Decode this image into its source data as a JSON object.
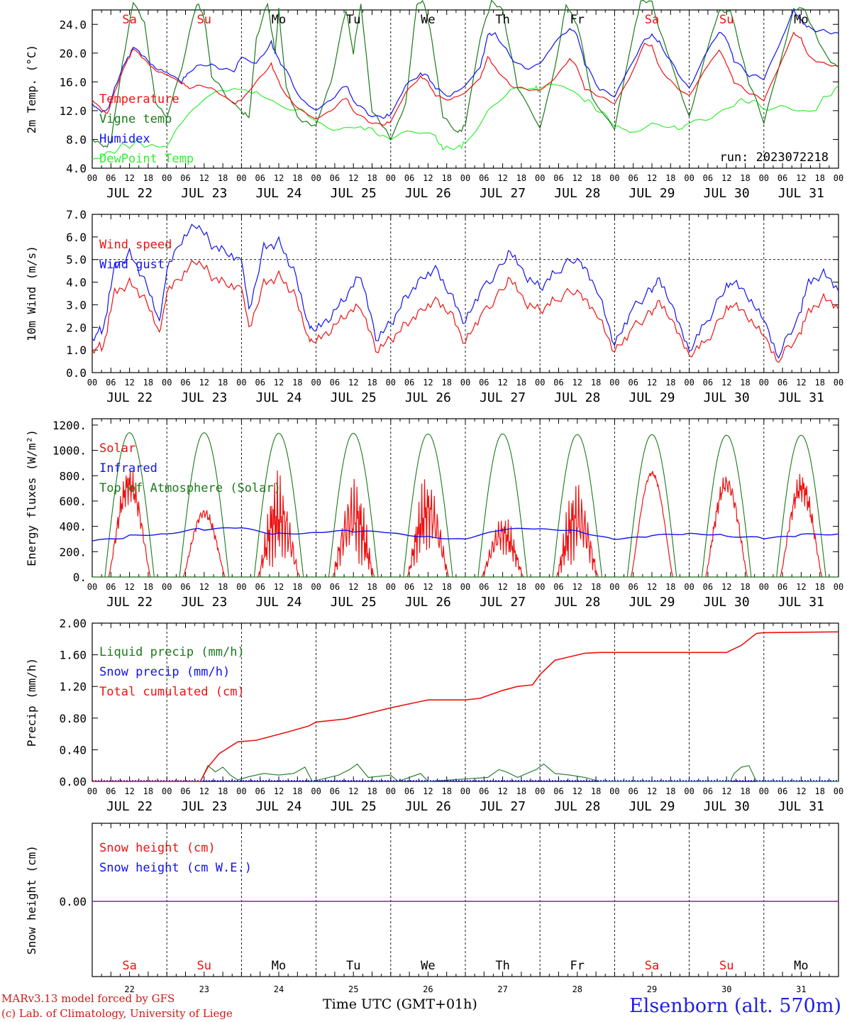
{
  "colors": {
    "red": "#ee1111",
    "blue": "#1212ee",
    "dkgreen": "#1a7a1a",
    "ltgreen": "#33ee33",
    "purple": "#7a2a9a"
  },
  "days": [
    "JUL 22",
    "JUL 23",
    "JUL 24",
    "JUL 25",
    "JUL 26",
    "JUL 27",
    "JUL 28",
    "JUL 29",
    "JUL 30",
    "JUL 31"
  ],
  "weekdays": [
    "Sa",
    "Su",
    "Mo",
    "Tu",
    "We",
    "Th",
    "Fr",
    "Sa",
    "Su",
    "Mo"
  ],
  "weekend_flags": [
    true,
    true,
    false,
    false,
    false,
    false,
    false,
    true,
    true,
    false
  ],
  "day_numbers": [
    "22",
    "23",
    "24",
    "25",
    "26",
    "27",
    "28",
    "29",
    "30",
    "31"
  ],
  "hour_ticks": [
    "00",
    "06",
    "12",
    "18"
  ],
  "final_hour_tick": "00",
  "footer": {
    "credit_line1": "MARv3.13 model forced by GFS",
    "credit_line2": "(c) Lab. of Climatology, University of Liege",
    "xlabel": "Time UTC (GMT+01h)",
    "station": "Elsenborn (alt. 570m)"
  },
  "chart_data": [
    {
      "type": "line",
      "ylabel": "2m Temp. (°C)",
      "yticks": [
        "4.0",
        "8.0",
        "12.0",
        "16.0",
        "20.0",
        "24.0"
      ],
      "ylim": [
        4,
        26
      ],
      "annotation": "run: 2023072218",
      "grid": false,
      "legend_position": "left",
      "series": [
        {
          "name": "Temperature",
          "color": "#ee1111",
          "x_days": [
            0,
            0.1,
            0.2,
            0.3,
            0.45,
            0.55,
            0.7,
            0.85,
            1.0,
            1.2,
            1.3,
            1.5,
            1.7,
            1.9,
            2.0,
            2.2,
            2.4,
            2.5,
            2.6,
            2.8,
            3.0,
            3.2,
            3.4,
            3.5,
            3.7,
            3.9,
            4.0,
            4.2,
            4.4,
            4.5,
            4.6,
            4.8,
            5.0,
            5.2,
            5.3,
            5.4,
            5.6,
            5.8,
            6.0,
            6.2,
            6.4,
            6.5,
            6.6,
            6.8,
            7.0,
            7.2,
            7.4,
            7.5,
            7.6,
            7.8,
            8.0,
            8.2,
            8.4,
            8.5,
            8.6,
            8.8,
            9.0,
            9.2,
            9.4,
            9.5,
            9.6,
            9.8,
            10.0
          ],
          "values": [
            13.5,
            12.5,
            11.5,
            14.5,
            18.5,
            20.6,
            19.0,
            17.5,
            17.0,
            15.8,
            15.2,
            15.5,
            14.5,
            13.0,
            13.5,
            16.0,
            18.5,
            16.0,
            14.0,
            12.0,
            10.8,
            12.0,
            13.8,
            12.0,
            10.5,
            10.0,
            10.5,
            14.5,
            16.8,
            16.0,
            14.0,
            13.5,
            14.5,
            16.5,
            19.5,
            18.0,
            15.5,
            15.0,
            14.8,
            16.5,
            19.3,
            18.0,
            15.0,
            14.0,
            13.0,
            16.5,
            21.3,
            21.0,
            18.0,
            15.5,
            14.0,
            17.5,
            20.5,
            18.5,
            16.0,
            14.5,
            13.5,
            18.0,
            22.8,
            22.0,
            19.5,
            18.5,
            18.2
          ]
        },
        {
          "name": "Vigne temp",
          "color": "#1a7a1a",
          "x_days": [
            0,
            0.15,
            0.25,
            0.4,
            0.55,
            0.7,
            0.85,
            1.0,
            1.2,
            1.4,
            1.5,
            1.6,
            1.8,
            2.0,
            2.1,
            2.2,
            2.35,
            2.45,
            2.5,
            2.6,
            2.75,
            3.0,
            3.2,
            3.4,
            3.5,
            3.6,
            3.75,
            4.0,
            4.2,
            4.35,
            4.45,
            4.55,
            4.7,
            4.9,
            5.0,
            5.2,
            5.35,
            5.5,
            5.7,
            6.0,
            6.2,
            6.35,
            6.5,
            6.7,
            7.0,
            7.2,
            7.35,
            7.5,
            7.7,
            8.0,
            8.2,
            8.4,
            8.55,
            8.8,
            9.0,
            9.2,
            9.4,
            9.55,
            9.8,
            10.0
          ],
          "values": [
            8.0,
            7.0,
            7.5,
            18,
            27,
            24,
            13,
            11,
            18,
            27,
            25,
            17,
            14,
            12,
            11,
            22,
            27,
            20,
            26,
            15,
            11,
            10.0,
            16,
            26,
            20,
            27,
            12,
            8.0,
            13,
            27,
            27,
            22,
            11,
            9.0,
            10,
            22,
            27,
            26,
            15,
            9.5,
            18,
            27,
            24,
            14,
            9.5,
            20,
            27,
            27,
            20,
            11,
            19,
            26,
            26,
            16,
            10.5,
            18,
            26,
            26,
            20,
            18
          ]
        },
        {
          "name": "Humidex",
          "color": "#1212ee",
          "x_days": [
            0,
            0.1,
            0.2,
            0.3,
            0.45,
            0.55,
            0.7,
            0.85,
            1.0,
            1.2,
            1.3,
            1.5,
            1.7,
            1.9,
            2.0,
            2.2,
            2.4,
            2.5,
            2.6,
            2.8,
            3.0,
            3.2,
            3.4,
            3.5,
            3.7,
            3.9,
            4.0,
            4.2,
            4.4,
            4.5,
            4.6,
            4.8,
            5.0,
            5.2,
            5.3,
            5.4,
            5.6,
            5.8,
            6.0,
            6.2,
            6.4,
            6.5,
            6.6,
            6.8,
            7.0,
            7.2,
            7.4,
            7.5,
            7.6,
            7.8,
            8.0,
            8.2,
            8.4,
            8.5,
            8.6,
            8.8,
            9.0,
            9.2,
            9.4,
            9.5,
            9.6,
            9.8,
            10.0
          ],
          "values": [
            13.0,
            12.0,
            12.0,
            15.0,
            18.8,
            20.8,
            19.3,
            17.8,
            17.3,
            16.0,
            17.5,
            18.5,
            18.0,
            17.5,
            19.5,
            18.5,
            21.5,
            19.0,
            17.5,
            13.5,
            12.0,
            13.5,
            15.5,
            13.5,
            11.5,
            11.0,
            11.5,
            15.5,
            17.2,
            16.8,
            15.0,
            14.0,
            15.5,
            18.0,
            22.5,
            22.8,
            19.5,
            17.8,
            18.5,
            21.5,
            23.5,
            22.5,
            18.5,
            15.0,
            14.0,
            18.0,
            21.8,
            22.5,
            21.5,
            18.0,
            15.0,
            19.5,
            23.0,
            22.0,
            19.0,
            17.0,
            16.5,
            21.0,
            26.0,
            24.5,
            23.5,
            23.0,
            22.8
          ]
        },
        {
          "name": "DewPoint Temp",
          "color": "#33ee33",
          "x_days": [
            0,
            0.2,
            0.4,
            0.6,
            0.8,
            1.0,
            1.2,
            1.5,
            1.8,
            2.0,
            2.2,
            2.5,
            2.8,
            3.0,
            3.3,
            3.6,
            3.8,
            4.0,
            4.3,
            4.6,
            4.7,
            4.9,
            5.0,
            5.3,
            5.6,
            5.9,
            6.0,
            6.3,
            6.6,
            6.8,
            7.0,
            7.2,
            7.5,
            7.8,
            8.0,
            8.3,
            8.6,
            8.8,
            9.0,
            9.3,
            9.6,
            9.8,
            10.0
          ],
          "values": [
            5.2,
            6.0,
            7.0,
            7.5,
            7.0,
            7.0,
            10.5,
            14.0,
            15.0,
            15.0,
            14.5,
            12.5,
            12.0,
            10.5,
            9.5,
            10.0,
            9.0,
            8.0,
            9.0,
            8.5,
            6.5,
            7.0,
            7.5,
            12.0,
            14.8,
            15.0,
            15.0,
            15.5,
            13.5,
            12.0,
            10.0,
            9.0,
            10.0,
            9.5,
            10.0,
            11.0,
            13.0,
            13.5,
            12.5,
            12.5,
            11.5,
            13.5,
            15.5
          ]
        }
      ]
    },
    {
      "type": "line",
      "ylabel": "10m Wind (m/s)",
      "yticks": [
        "0.0",
        "1.0",
        "2.0",
        "3.0",
        "4.0",
        "5.0",
        "6.0",
        "7.0"
      ],
      "ylim": [
        0,
        7
      ],
      "reference_line": 5.0,
      "legend_position": "left",
      "series": [
        {
          "name": "Wind speed",
          "color": "#ee1111",
          "x_days": [
            0,
            0.15,
            0.3,
            0.5,
            0.7,
            0.9,
            1.0,
            1.2,
            1.4,
            1.6,
            1.8,
            2.0,
            2.1,
            2.3,
            2.5,
            2.7,
            2.9,
            3.0,
            3.2,
            3.4,
            3.6,
            3.8,
            4.0,
            4.2,
            4.4,
            4.6,
            4.8,
            5.0,
            5.2,
            5.45,
            5.6,
            5.8,
            6.0,
            6.2,
            6.45,
            6.6,
            6.8,
            7.0,
            7.2,
            7.45,
            7.6,
            7.8,
            8.0,
            8.2,
            8.45,
            8.6,
            8.8,
            9.0,
            9.2,
            9.45,
            9.6,
            9.8,
            10.0
          ],
          "values": [
            1.0,
            1.2,
            3.5,
            3.9,
            3.2,
            1.7,
            3.5,
            4.2,
            5.0,
            4.3,
            4.0,
            3.8,
            2.0,
            4.0,
            4.3,
            3.5,
            1.5,
            1.3,
            1.8,
            2.5,
            2.9,
            1.0,
            1.5,
            2.2,
            2.8,
            3.3,
            2.7,
            1.3,
            2.5,
            3.5,
            4.1,
            3.0,
            2.7,
            3.2,
            3.6,
            3.4,
            2.5,
            1.0,
            1.8,
            2.6,
            3.0,
            2.0,
            0.6,
            1.3,
            2.5,
            3.2,
            2.5,
            1.8,
            0.5,
            1.6,
            2.6,
            3.2,
            2.8
          ]
        },
        {
          "name": "Wind gust",
          "color": "#1212ee",
          "x_days": [
            0,
            0.15,
            0.3,
            0.5,
            0.7,
            0.9,
            1.0,
            1.2,
            1.4,
            1.6,
            1.8,
            2.0,
            2.1,
            2.3,
            2.5,
            2.7,
            2.9,
            3.0,
            3.2,
            3.4,
            3.6,
            3.8,
            4.0,
            4.2,
            4.4,
            4.6,
            4.8,
            5.0,
            5.2,
            5.45,
            5.6,
            5.8,
            6.0,
            6.2,
            6.45,
            6.6,
            6.8,
            7.0,
            7.2,
            7.45,
            7.6,
            7.8,
            8.0,
            8.2,
            8.45,
            8.6,
            8.8,
            9.0,
            9.2,
            9.45,
            9.6,
            9.8,
            10.0
          ],
          "values": [
            1.5,
            2.0,
            4.6,
            5.2,
            4.0,
            2.2,
            4.5,
            5.8,
            6.6,
            5.7,
            5.4,
            5.0,
            2.8,
            5.6,
            5.8,
            4.5,
            2.1,
            1.8,
            2.4,
            3.3,
            4.3,
            1.5,
            2.2,
            3.4,
            4.2,
            4.7,
            3.5,
            2.2,
            3.6,
            4.6,
            5.3,
            4.2,
            3.7,
            4.4,
            5.0,
            4.8,
            3.5,
            1.3,
            2.6,
            3.6,
            4.0,
            2.6,
            0.8,
            2.1,
            3.5,
            4.2,
            3.4,
            2.5,
            0.7,
            2.4,
            3.9,
            4.3,
            3.6
          ]
        }
      ]
    },
    {
      "type": "line",
      "ylabel": "Energy fluxes (W/m²)",
      "yticks": [
        "0.",
        "200.",
        "400.",
        "600.",
        "800.",
        "1000.",
        "1200."
      ],
      "ylim": [
        0,
        1250
      ],
      "legend_position": "left",
      "series": [
        {
          "name": "Solar",
          "color": "#ee1111",
          "daily_peak": [
            880,
            560,
            860,
            860,
            850,
            520,
            830,
            840,
            840,
            830
          ],
          "daily_cloudiness": [
            0.35,
            0.2,
            0.9,
            0.9,
            0.8,
            0.7,
            0.9,
            0.05,
            0.25,
            0.3
          ]
        },
        {
          "name": "Infrared",
          "color": "#1212ee",
          "x_days": [
            0,
            0.5,
            1.0,
            1.5,
            2.0,
            2.5,
            3.0,
            3.5,
            4.0,
            4.5,
            5.0,
            5.5,
            6.0,
            6.5,
            7.0,
            7.5,
            8.0,
            8.5,
            9.0,
            9.5,
            10.0
          ],
          "values": [
            285,
            320,
            340,
            380,
            390,
            340,
            350,
            360,
            350,
            320,
            300,
            370,
            380,
            370,
            300,
            320,
            340,
            330,
            310,
            330,
            340
          ]
        },
        {
          "name": "Top of Atmosphere (Solar)",
          "color": "#1a7a1a",
          "daily_peak": [
            1140,
            1140,
            1135,
            1135,
            1130,
            1130,
            1125,
            1125,
            1120,
            1120
          ]
        }
      ]
    },
    {
      "type": "line",
      "ylabel": "Precip (mm/h)",
      "yticks": [
        "0.00",
        "0.40",
        "0.80",
        "1.20",
        "1.60",
        "2.00"
      ],
      "ylim": [
        0,
        2
      ],
      "legend_position": "left",
      "series": [
        {
          "name": "Liquid precip (mm/h)",
          "color": "#1a7a1a",
          "x_days": [
            0,
            1.45,
            1.55,
            1.65,
            1.75,
            1.85,
            1.95,
            2.1,
            2.3,
            2.5,
            2.7,
            2.85,
            2.95,
            3.3,
            3.45,
            3.55,
            3.7,
            4.0,
            4.1,
            4.4,
            4.5,
            5.3,
            5.45,
            5.55,
            5.7,
            5.95,
            6.05,
            6.2,
            6.4,
            6.6,
            6.8,
            8.55,
            8.6,
            8.7,
            8.8,
            8.9,
            10.0
          ],
          "values": [
            0,
            0,
            0.2,
            0.12,
            0.18,
            0.08,
            0.02,
            0.06,
            0.1,
            0.08,
            0.1,
            0.18,
            0,
            0.08,
            0.15,
            0.22,
            0.05,
            0.08,
            0,
            0.1,
            0,
            0.05,
            0.15,
            0.12,
            0.05,
            0.15,
            0.22,
            0.1,
            0.08,
            0.05,
            0,
            0,
            0.1,
            0.18,
            0.2,
            0,
            0
          ]
        },
        {
          "name": "Snow precip (mm/h)",
          "color": "#1212ee",
          "x_days": [
            0,
            10
          ],
          "values": [
            0,
            0
          ]
        },
        {
          "name": "Total cumulated (cm)",
          "color": "#ee1111",
          "x_days": [
            0,
            1.45,
            1.55,
            1.7,
            1.95,
            2.2,
            2.6,
            2.9,
            3.0,
            3.4,
            3.7,
            4.0,
            4.4,
            4.5,
            5.0,
            5.2,
            5.5,
            5.7,
            5.9,
            6.0,
            6.2,
            6.6,
            6.8,
            7.0,
            8.5,
            8.7,
            8.9,
            9.0,
            10.0
          ],
          "values": [
            0,
            0,
            0.18,
            0.35,
            0.5,
            0.52,
            0.62,
            0.7,
            0.75,
            0.79,
            0.86,
            0.93,
            1.01,
            1.03,
            1.03,
            1.05,
            1.15,
            1.2,
            1.22,
            1.35,
            1.53,
            1.62,
            1.63,
            1.63,
            1.63,
            1.72,
            1.87,
            1.88,
            1.89
          ]
        }
      ]
    },
    {
      "type": "line",
      "ylabel": "Snow height (cm)",
      "yticks": [
        "0.00"
      ],
      "legend_position": "left",
      "series": [
        {
          "name": "Snow height (cm)",
          "color": "#ee1111",
          "x_days": [
            0,
            10
          ],
          "values": [
            0,
            0
          ]
        },
        {
          "name": "Snow height (cm W.E.)",
          "color": "#1212ee",
          "x_days": [
            0,
            10
          ],
          "values": [
            0,
            0
          ]
        }
      ]
    }
  ]
}
